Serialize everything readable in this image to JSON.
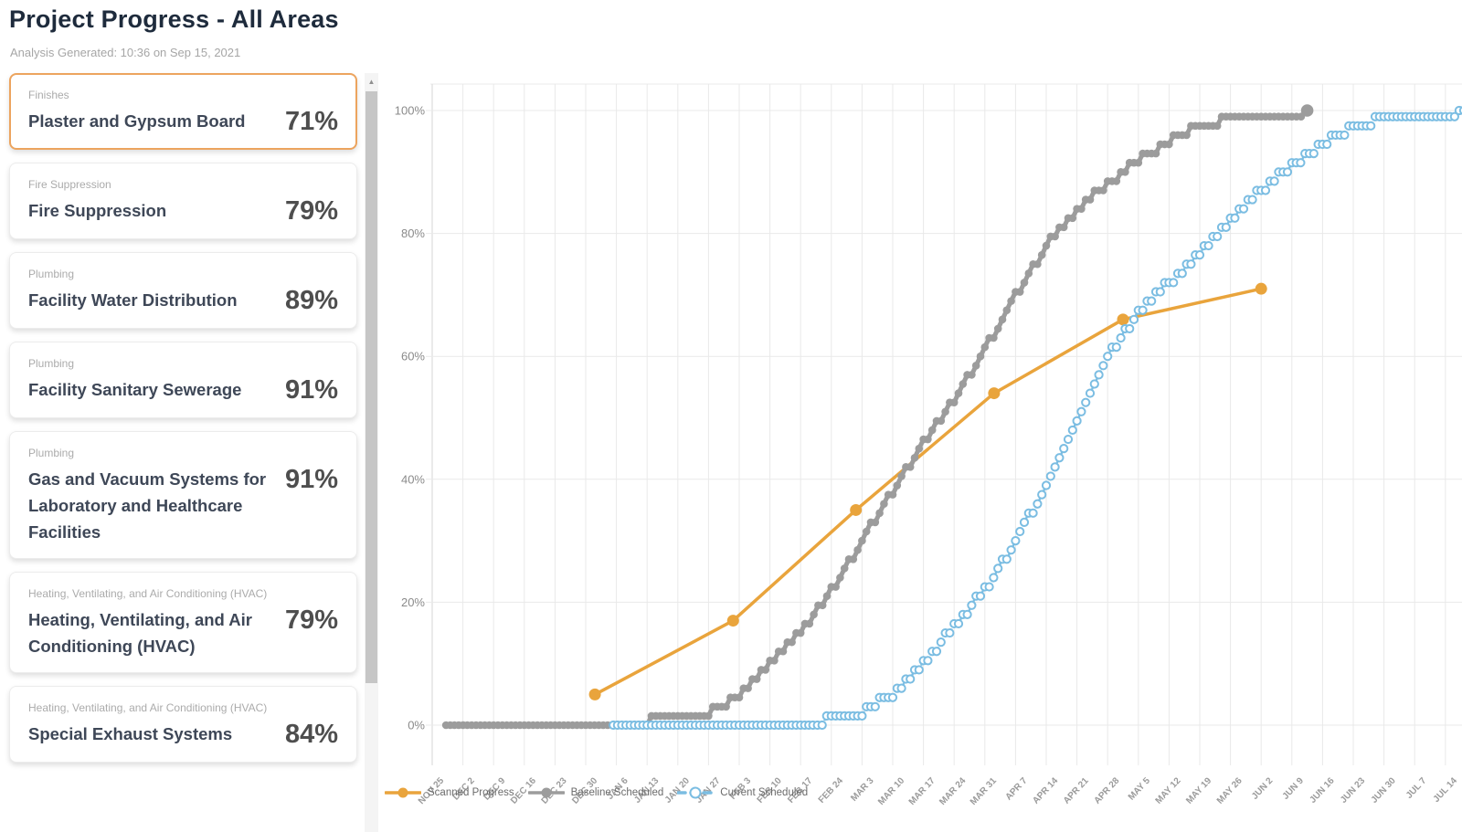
{
  "header": {
    "title": "Project Progress - All Areas",
    "subtitle": "Analysis Generated: 10:36 on Sep 15, 2021"
  },
  "cards": [
    {
      "category": "Finishes",
      "name": "Plaster and Gypsum Board",
      "percent": "71%",
      "selected": true
    },
    {
      "category": "Fire Suppression",
      "name": "Fire Suppression",
      "percent": "79%",
      "selected": false
    },
    {
      "category": "Plumbing",
      "name": "Facility Water Distribution",
      "percent": "89%",
      "selected": false
    },
    {
      "category": "Plumbing",
      "name": "Facility Sanitary Sewerage",
      "percent": "91%",
      "selected": false
    },
    {
      "category": "Plumbing",
      "name": "Gas and Vacuum Systems for Laboratory and Healthcare Facilities",
      "percent": "91%",
      "selected": false
    },
    {
      "category": "Heating, Ventilating, and Air Conditioning (HVAC)",
      "name": "Heating, Ventilating, and Air Conditioning (HVAC)",
      "percent": "79%",
      "selected": false
    },
    {
      "category": "Heating, Ventilating, and Air Conditioning (HVAC)",
      "name": "Special Exhaust Systems",
      "percent": "84%",
      "selected": false
    }
  ],
  "chart_data": {
    "type": "line",
    "title": "",
    "x_unit": "weeks since Nov 25 (one x label per week)",
    "x_labels": [
      "NOV 25",
      "DEC 2",
      "DEC 9",
      "DEC 16",
      "DEC 23",
      "DEC 30",
      "JAN 6",
      "JAN 13",
      "JAN 20",
      "JAN 27",
      "FEB 3",
      "FEB 10",
      "FEB 17",
      "FEB 24",
      "MAR 3",
      "MAR 10",
      "MAR 17",
      "MAR 24",
      "MAR 31",
      "APR 7",
      "APR 14",
      "APR 21",
      "APR 28",
      "MAY 5",
      "MAY 12",
      "MAY 19",
      "MAY 26",
      "JUN 2",
      "JUN 9",
      "JUN 16",
      "JUN 23",
      "JUN 30",
      "JUL 7",
      "JUL 14"
    ],
    "y_tick_labels": [
      "0%",
      "20%",
      "40%",
      "60%",
      "80%",
      "100%"
    ],
    "ylim": [
      0,
      100
    ],
    "grid": true,
    "legend_position": "bottom-left",
    "colors": {
      "scanned": "#E9A43C",
      "baseline": "#9C9C9C",
      "current": "#7BBDE2"
    },
    "series": [
      {
        "name": "Scanned Progress",
        "color": "#E9A43C",
        "line": "solid",
        "marker": "filled-circle",
        "points_weeks": [
          [
            5.3,
            5
          ],
          [
            9.8,
            17
          ],
          [
            13.8,
            35
          ],
          [
            18.3,
            54
          ],
          [
            22.5,
            66
          ],
          [
            27,
            71
          ]
        ],
        "points_dates": [
          "Jan 1",
          "Feb 2",
          "Mar 1",
          "Apr 1",
          "May 2",
          "Jun 2"
        ]
      },
      {
        "name": "Baseline Scheduled",
        "color": "#9C9C9C",
        "line": "solid",
        "marker": "dense-filled",
        "end_dot": true,
        "points_weeks": [
          [
            0.45,
            0
          ],
          [
            1,
            0
          ],
          [
            2,
            0
          ],
          [
            3,
            0
          ],
          [
            4,
            0
          ],
          [
            5,
            0
          ],
          [
            6,
            0.2
          ],
          [
            7,
            0.7
          ],
          [
            8,
            1.2
          ],
          [
            9,
            2
          ],
          [
            10,
            5
          ],
          [
            11,
            10
          ],
          [
            12,
            15
          ],
          [
            13,
            22
          ],
          [
            14,
            30
          ],
          [
            15,
            38
          ],
          [
            16,
            46
          ],
          [
            17,
            53
          ],
          [
            18,
            61
          ],
          [
            19,
            70
          ],
          [
            20,
            78
          ],
          [
            21,
            84
          ],
          [
            22,
            88
          ],
          [
            23,
            92
          ],
          [
            24,
            95
          ],
          [
            25,
            97.5
          ],
          [
            26,
            98.6
          ],
          [
            27,
            98.8
          ],
          [
            28,
            99
          ],
          [
            28.3,
            99
          ],
          [
            28.5,
            100
          ]
        ]
      },
      {
        "name": "Current Scheduled",
        "color": "#7BBDE2",
        "line": "dashed",
        "marker": "dense-open",
        "points_weeks": [
          [
            5.9,
            0
          ],
          [
            7,
            0
          ],
          [
            8,
            0
          ],
          [
            9,
            0
          ],
          [
            10,
            0
          ],
          [
            11,
            0
          ],
          [
            12,
            0
          ],
          [
            12.4,
            0
          ],
          [
            13,
            1
          ],
          [
            14,
            2.2
          ],
          [
            15,
            5
          ],
          [
            16,
            10
          ],
          [
            17,
            16
          ],
          [
            18,
            22
          ],
          [
            19,
            30
          ],
          [
            20,
            39
          ],
          [
            21,
            50
          ],
          [
            22,
            60
          ],
          [
            23,
            67
          ],
          [
            24,
            72
          ],
          [
            25,
            77
          ],
          [
            26,
            82
          ],
          [
            27,
            87
          ],
          [
            28,
            91
          ],
          [
            29,
            94.5
          ],
          [
            30,
            97.5
          ],
          [
            31,
            98.6
          ],
          [
            32,
            99
          ],
          [
            33,
            99.3
          ],
          [
            33.6,
            100
          ]
        ]
      }
    ]
  }
}
